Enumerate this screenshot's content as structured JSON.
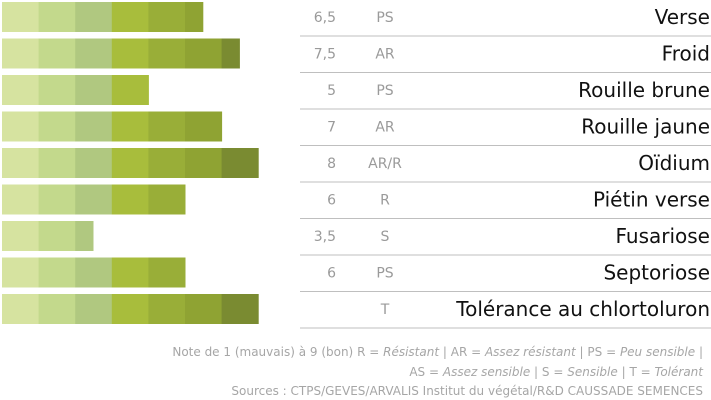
{
  "chart_data": {
    "type": "bar",
    "orientation": "horizontal",
    "segmented_scale": {
      "min": 1,
      "max": 9
    },
    "categories": [
      "Verse",
      "Froid",
      "Rouille brune",
      "Rouille jaune",
      "Oïdium",
      "Piétin verse",
      "Fusariose",
      "Septoriose",
      "Tolérance au chlortoluron"
    ],
    "values": [
      6.5,
      7.5,
      5,
      7,
      8,
      6,
      3.5,
      6,
      8
    ],
    "value_labels": [
      "6,5",
      "7,5",
      "5",
      "7",
      "8",
      "6",
      "3,5",
      "6",
      ""
    ],
    "classes": [
      "PS",
      "AR",
      "PS",
      "AR",
      "AR/R",
      "R",
      "S",
      "PS",
      "T"
    ],
    "segment_colors": [
      "#d6e3a0",
      "#c3d98c",
      "#b0c880",
      "#a8bd3c",
      "#99ae38",
      "#8fa333",
      "#7a8b31",
      "#1e7a47"
    ],
    "row_line_color": "#bfbfbf"
  },
  "legend": {
    "prefix": "Note de 1 (mauvais) à 9 (bon)",
    "items": [
      {
        "code": "R",
        "label": "Résistant"
      },
      {
        "code": "AR",
        "label": "Assez résistant"
      },
      {
        "code": "PS",
        "label": "Peu sensible"
      },
      {
        "code": "AS",
        "label": "Assez sensible"
      },
      {
        "code": "S",
        "label": "Sensible"
      },
      {
        "code": "T",
        "label": "Tolérant"
      }
    ]
  },
  "sources": "Sources : CTPS/GEVES/ARVALIS Institut du végétal/R&D CAUSSADE SEMENCES"
}
